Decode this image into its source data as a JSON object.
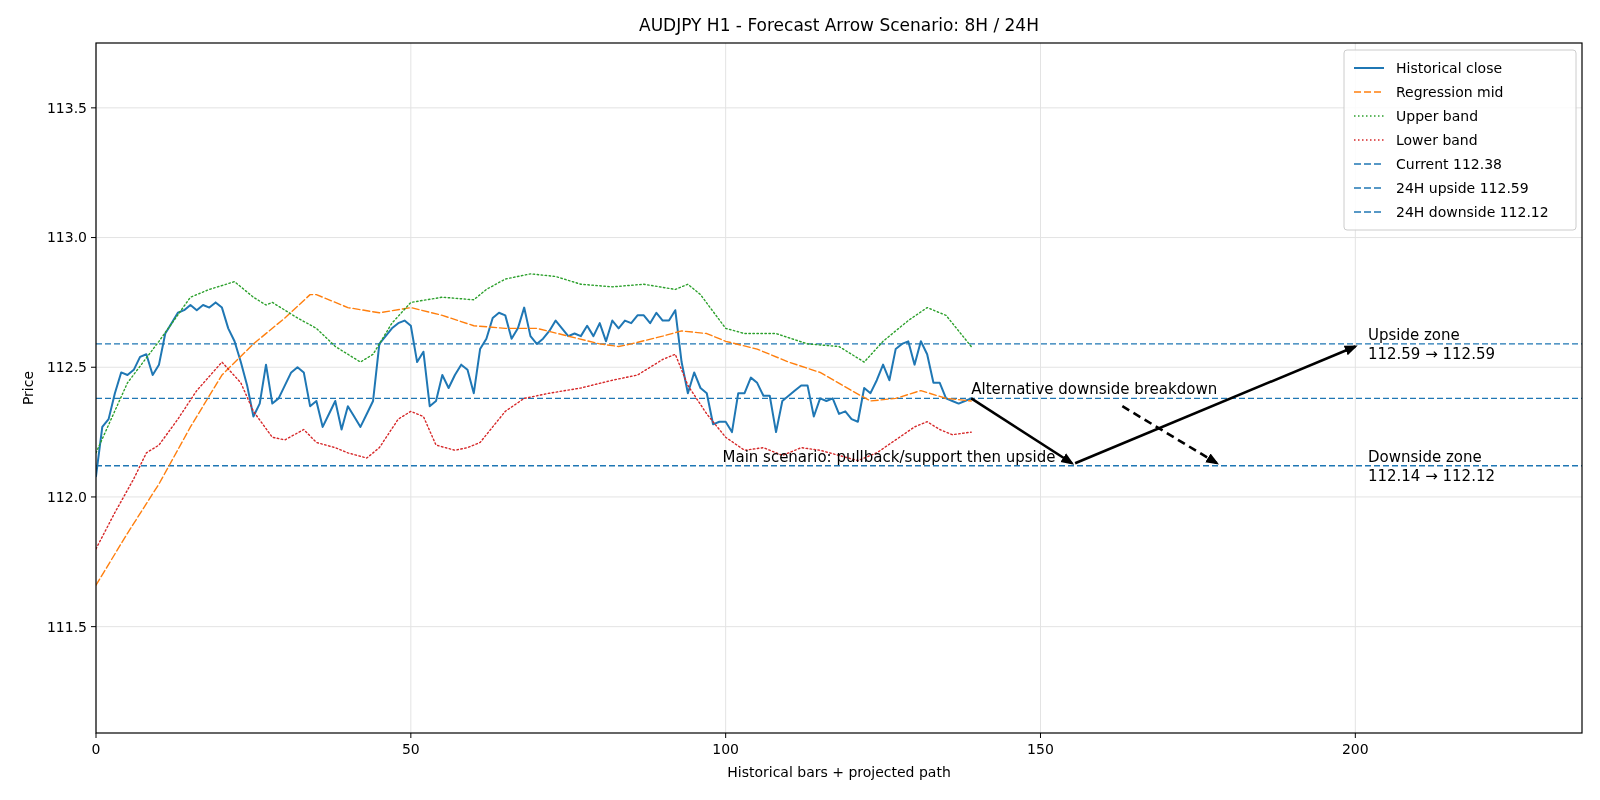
{
  "chart_data": {
    "type": "line",
    "title": "AUDJPY H1 - Forecast Arrow Scenario: 8H / 24H",
    "xlabel": "Historical bars + projected path",
    "ylabel": "Price",
    "xlim": [
      0,
      236
    ],
    "ylim": [
      111.09,
      113.75
    ],
    "xticks": [
      0,
      50,
      100,
      150,
      200
    ],
    "yticks": [
      111.5,
      {
        "value": 112,
        "label": "112.0"
      },
      112.5,
      {
        "value": 113,
        "label": "113.0"
      },
      113.5
    ],
    "grid": true,
    "legend": "top right",
    "series": [
      {
        "name": "Historical close",
        "color": "#1f77b4",
        "line_style": "solid",
        "x": [
          0,
          1,
          2,
          3,
          4,
          5,
          6,
          7,
          8,
          9,
          10,
          11,
          12,
          13,
          14,
          15,
          16,
          17,
          18,
          19,
          20,
          21,
          22,
          23,
          24,
          25,
          26,
          27,
          28,
          29,
          30,
          31,
          32,
          33,
          34,
          35,
          36,
          37,
          38,
          39,
          40,
          41,
          42,
          43,
          44,
          45,
          46,
          47,
          48,
          49,
          50,
          51,
          52,
          53,
          54,
          55,
          56,
          57,
          58,
          59,
          60,
          61,
          62,
          63,
          64,
          65,
          66,
          67,
          68,
          69,
          70,
          71,
          72,
          73,
          74,
          75,
          76,
          77,
          78,
          79,
          80,
          81,
          82,
          83,
          84,
          85,
          86,
          87,
          88,
          89,
          90,
          91,
          92,
          93,
          94,
          95,
          96,
          97,
          98,
          99,
          100,
          101,
          102,
          103,
          104,
          105,
          106,
          107,
          108,
          109,
          110,
          111,
          112,
          113,
          114,
          115,
          116,
          117,
          118,
          119,
          120,
          121,
          122,
          123,
          124,
          125,
          126,
          127,
          128,
          129,
          130,
          131,
          132,
          133,
          134,
          135,
          136,
          137,
          138,
          139
        ],
        "values": [
          112.08,
          112.27,
          112.3,
          112.4,
          112.48,
          112.47,
          112.49,
          112.54,
          112.55,
          112.47,
          112.51,
          112.63,
          112.67,
          112.71,
          112.72,
          112.74,
          112.72,
          112.74,
          112.73,
          112.75,
          112.73,
          112.65,
          112.6,
          112.52,
          112.43,
          112.31,
          112.36,
          112.51,
          112.36,
          112.38,
          112.43,
          112.48,
          112.5,
          112.48,
          112.35,
          112.37,
          112.27,
          112.32,
          112.37,
          112.26,
          112.35,
          112.31,
          112.27,
          112.32,
          112.37,
          112.59,
          112.62,
          112.65,
          112.67,
          112.68,
          112.66,
          112.52,
          112.56,
          112.35,
          112.37,
          112.47,
          112.42,
          112.47,
          112.51,
          112.49,
          112.4,
          112.57,
          112.61,
          112.69,
          112.71,
          112.7,
          112.61,
          112.65,
          112.73,
          112.62,
          112.59,
          112.61,
          112.64,
          112.68,
          112.65,
          112.62,
          112.63,
          112.62,
          112.66,
          112.62,
          112.67,
          112.6,
          112.68,
          112.65,
          112.68,
          112.67,
          112.7,
          112.7,
          112.67,
          112.71,
          112.68,
          112.68,
          112.72,
          112.52,
          112.4,
          112.48,
          112.42,
          112.4,
          112.28,
          112.29,
          112.29,
          112.25,
          112.4,
          112.4,
          112.46,
          112.44,
          112.39,
          112.39,
          112.25,
          112.37,
          112.39,
          112.41,
          112.43,
          112.43,
          112.31,
          112.38,
          112.37,
          112.38,
          112.32,
          112.33,
          112.3,
          112.29,
          112.42,
          112.4,
          112.45,
          112.51,
          112.45,
          112.57,
          112.59,
          112.6,
          112.51,
          112.6,
          112.55,
          112.44,
          112.44,
          112.38,
          112.37,
          112.36,
          112.37,
          112.38
        ]
      },
      {
        "name": "Regression mid",
        "color": "#ff7f0e",
        "line_style": "dashed",
        "x": [
          0,
          5,
          10,
          15,
          20,
          25,
          30,
          34,
          35,
          40,
          45,
          50,
          55,
          60,
          65,
          70,
          75,
          80,
          83,
          85,
          90,
          93,
          97,
          100,
          105,
          110,
          115,
          120,
          123,
          127,
          131,
          135,
          139
        ],
        "values": [
          111.66,
          111.86,
          112.05,
          112.27,
          112.47,
          112.59,
          112.69,
          112.78,
          112.78,
          112.73,
          112.71,
          112.73,
          112.7,
          112.66,
          112.65,
          112.65,
          112.62,
          112.59,
          112.58,
          112.59,
          112.62,
          112.64,
          112.63,
          112.6,
          112.57,
          112.52,
          112.48,
          112.41,
          112.37,
          112.38,
          112.41,
          112.38,
          112.37
        ]
      },
      {
        "name": "Upper band",
        "color": "#2ca02c",
        "line_style": "dotted",
        "x": [
          0,
          5,
          10,
          15,
          18,
          22,
          25,
          27,
          28,
          32,
          35,
          38,
          42,
          44,
          47,
          50,
          55,
          60,
          62,
          65,
          69,
          73,
          77,
          82,
          87,
          92,
          94,
          96,
          100,
          103,
          108,
          113,
          118,
          122,
          125,
          129,
          132,
          135,
          139
        ],
        "values": [
          112.17,
          112.44,
          112.6,
          112.77,
          112.8,
          112.83,
          112.77,
          112.74,
          112.75,
          112.69,
          112.65,
          112.58,
          112.52,
          112.55,
          112.67,
          112.75,
          112.77,
          112.76,
          112.8,
          112.84,
          112.86,
          112.85,
          112.82,
          112.81,
          112.82,
          112.8,
          112.82,
          112.78,
          112.65,
          112.63,
          112.63,
          112.59,
          112.58,
          112.52,
          112.6,
          112.68,
          112.73,
          112.7,
          112.58
        ]
      },
      {
        "name": "Lower band",
        "color": "#d62728",
        "line_style": "dotted",
        "x": [
          0,
          3,
          6,
          8,
          10,
          13,
          16,
          20,
          23,
          25,
          28,
          30,
          33,
          35,
          38,
          40,
          43,
          45,
          48,
          50,
          52,
          54,
          57,
          59,
          61,
          63,
          65,
          68,
          72,
          77,
          82,
          86,
          90,
          92,
          94,
          97,
          100,
          103,
          106,
          109,
          112,
          115,
          118,
          121,
          124,
          127,
          130,
          132,
          134,
          136,
          139
        ],
        "values": [
          111.8,
          111.94,
          112.07,
          112.17,
          112.2,
          112.3,
          112.41,
          112.52,
          112.44,
          112.33,
          112.23,
          112.22,
          112.26,
          112.21,
          112.19,
          112.17,
          112.15,
          112.19,
          112.3,
          112.33,
          112.31,
          112.2,
          112.18,
          112.19,
          112.21,
          112.27,
          112.33,
          112.38,
          112.4,
          112.42,
          112.45,
          112.47,
          112.53,
          112.55,
          112.43,
          112.32,
          112.23,
          112.18,
          112.19,
          112.16,
          112.19,
          112.18,
          112.16,
          112.14,
          112.17,
          112.22,
          112.27,
          112.29,
          112.26,
          112.24,
          112.25
        ]
      },
      {
        "color": "#000000",
        "line_style": "solid",
        "x": [
          139,
          155
        ],
        "values": [
          112.38,
          112.13
        ]
      },
      {
        "color": "#000000",
        "line_style": "solid",
        "x": [
          155.5,
          200
        ],
        "values": [
          112.13,
          112.58
        ]
      },
      {
        "color": "#000000",
        "line_style": "dashed",
        "x": [
          163,
          178
        ],
        "values": [
          112.35,
          112.13
        ]
      }
    ],
    "ref_lines": [
      {
        "axis": "y",
        "value": 112.38,
        "label": "Current 112.38",
        "color": "#1f77b4",
        "line_style": "dashed"
      },
      {
        "axis": "y",
        "value": 112.59,
        "label": "24H upside 112.59",
        "color": "#1f77b4",
        "line_style": "dashed"
      },
      {
        "axis": "y",
        "value": 112.12,
        "label": "24H downside 112.12",
        "color": "#1f77b4",
        "line_style": "dashed"
      }
    ],
    "annotations": [
      {
        "text": "Upside zone\n112.59 → 112.59",
        "x": 202,
        "y": 112.59
      },
      {
        "text": "Downside zone\n112.14 → 112.12",
        "x": 202,
        "y": 112.12
      },
      {
        "text": "Alternative downside breakdown",
        "x": 139,
        "y": 112.38
      },
      {
        "text": "Main scenario: pullback/support then upside",
        "x": 99.5,
        "y": 112.12
      }
    ]
  }
}
